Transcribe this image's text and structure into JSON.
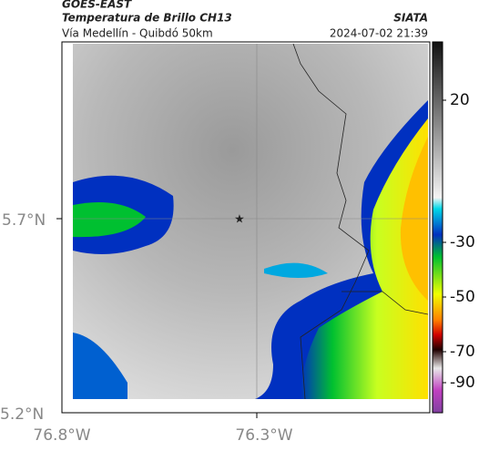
{
  "header": {
    "source": "GOES-EAST",
    "product": "Temperatura de Brillo CH13",
    "route": "Vía Medellín - Quibdó 50km",
    "agency": "SIATA",
    "timestamp": "2024-07-02 21:39"
  },
  "map": {
    "lat_labels": [
      "5.7°N",
      "5.2°N"
    ],
    "lon_labels": [
      "76.8°W",
      "76.3°W"
    ]
  },
  "colorbar": {
    "ticks": [
      "20",
      "-30",
      "-50",
      "-70",
      "-90"
    ]
  }
}
